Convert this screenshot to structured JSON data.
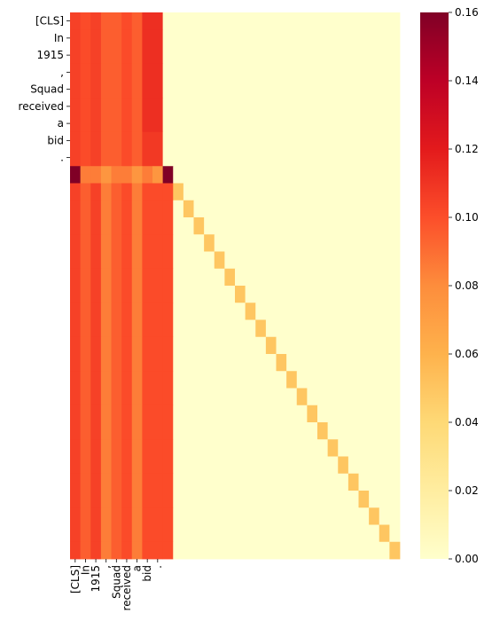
{
  "chart_data": {
    "type": "heatmap",
    "title": "",
    "xlabel": "",
    "ylabel": "",
    "colormap": "YlOrRd",
    "value_range": [
      0,
      0.16
    ],
    "n_rows": 32,
    "n_cols": 32,
    "x_tick_labels": [
      "[CLS]",
      "In",
      "1915",
      ",",
      "Squad",
      "received",
      "a",
      "bid",
      "."
    ],
    "y_tick_labels": [
      "[CLS]",
      "In",
      "1915",
      ",",
      "Squad",
      "received",
      "a",
      "bid",
      "."
    ],
    "prefix_rows": [
      [
        0.105,
        0.101,
        0.105,
        0.095,
        0.095,
        0.101,
        0.095,
        0.112,
        0.112,
        0,
        0,
        0,
        0,
        0,
        0,
        0,
        0,
        0,
        0,
        0,
        0,
        0,
        0,
        0,
        0,
        0,
        0,
        0,
        0,
        0,
        0,
        0
      ],
      [
        0.105,
        0.101,
        0.105,
        0.095,
        0.095,
        0.101,
        0.095,
        0.112,
        0.112,
        0,
        0,
        0,
        0,
        0,
        0,
        0,
        0,
        0,
        0,
        0,
        0,
        0,
        0,
        0,
        0,
        0,
        0,
        0,
        0,
        0,
        0,
        0
      ],
      [
        0.105,
        0.101,
        0.105,
        0.095,
        0.095,
        0.101,
        0.095,
        0.112,
        0.112,
        0,
        0,
        0,
        0,
        0,
        0,
        0,
        0,
        0,
        0,
        0,
        0,
        0,
        0,
        0,
        0,
        0,
        0,
        0,
        0,
        0,
        0,
        0
      ],
      [
        0.105,
        0.101,
        0.105,
        0.095,
        0.095,
        0.101,
        0.095,
        0.112,
        0.112,
        0,
        0,
        0,
        0,
        0,
        0,
        0,
        0,
        0,
        0,
        0,
        0,
        0,
        0,
        0,
        0,
        0,
        0,
        0,
        0,
        0,
        0,
        0
      ],
      [
        0.105,
        0.101,
        0.105,
        0.095,
        0.095,
        0.101,
        0.095,
        0.112,
        0.112,
        0,
        0,
        0,
        0,
        0,
        0,
        0,
        0,
        0,
        0,
        0,
        0,
        0,
        0,
        0,
        0,
        0,
        0,
        0,
        0,
        0,
        0,
        0
      ],
      [
        0.105,
        0.101,
        0.105,
        0.095,
        0.095,
        0.101,
        0.095,
        0.112,
        0.112,
        0,
        0,
        0,
        0,
        0,
        0,
        0,
        0,
        0,
        0,
        0,
        0,
        0,
        0,
        0,
        0,
        0,
        0,
        0,
        0,
        0,
        0,
        0
      ],
      [
        0.105,
        0.101,
        0.105,
        0.095,
        0.095,
        0.101,
        0.095,
        0.112,
        0.112,
        0,
        0,
        0,
        0,
        0,
        0,
        0,
        0,
        0,
        0,
        0,
        0,
        0,
        0,
        0,
        0,
        0,
        0,
        0,
        0,
        0,
        0,
        0
      ],
      [
        0.105,
        0.101,
        0.105,
        0.095,
        0.095,
        0.101,
        0.095,
        0.108,
        0.108,
        0,
        0,
        0,
        0,
        0,
        0,
        0,
        0,
        0,
        0,
        0,
        0,
        0,
        0,
        0,
        0,
        0,
        0,
        0,
        0,
        0,
        0,
        0
      ],
      [
        0.105,
        0.101,
        0.105,
        0.095,
        0.095,
        0.101,
        0.095,
        0.108,
        0.108,
        0,
        0,
        0,
        0,
        0,
        0,
        0,
        0,
        0,
        0,
        0,
        0,
        0,
        0,
        0,
        0,
        0,
        0,
        0,
        0,
        0,
        0,
        0
      ],
      [
        0.16,
        0.085,
        0.085,
        0.075,
        0.085,
        0.085,
        0.075,
        0.085,
        0.075,
        0.16,
        0,
        0,
        0,
        0,
        0,
        0,
        0,
        0,
        0,
        0,
        0,
        0,
        0,
        0,
        0,
        0,
        0,
        0,
        0,
        0,
        0,
        0
      ]
    ],
    "lower_block_columns": [
      0.105,
      0.095,
      0.105,
      0.085,
      0.095,
      0.101,
      0.085,
      0.101,
      0.101,
      0.101
    ],
    "diagonal_start_row": 10,
    "diagonal_start_col": 10,
    "diagonal_value": 0.05,
    "colorbar_ticks": [
      0.0,
      0.02,
      0.04,
      0.06,
      0.08,
      0.1,
      0.12,
      0.14,
      0.16
    ],
    "colorbar_tick_labels": [
      "0.00",
      "0.02",
      "0.04",
      "0.06",
      "0.08",
      "0.10",
      "0.12",
      "0.14",
      "0.16"
    ],
    "legend_position": "right",
    "grid": false
  }
}
